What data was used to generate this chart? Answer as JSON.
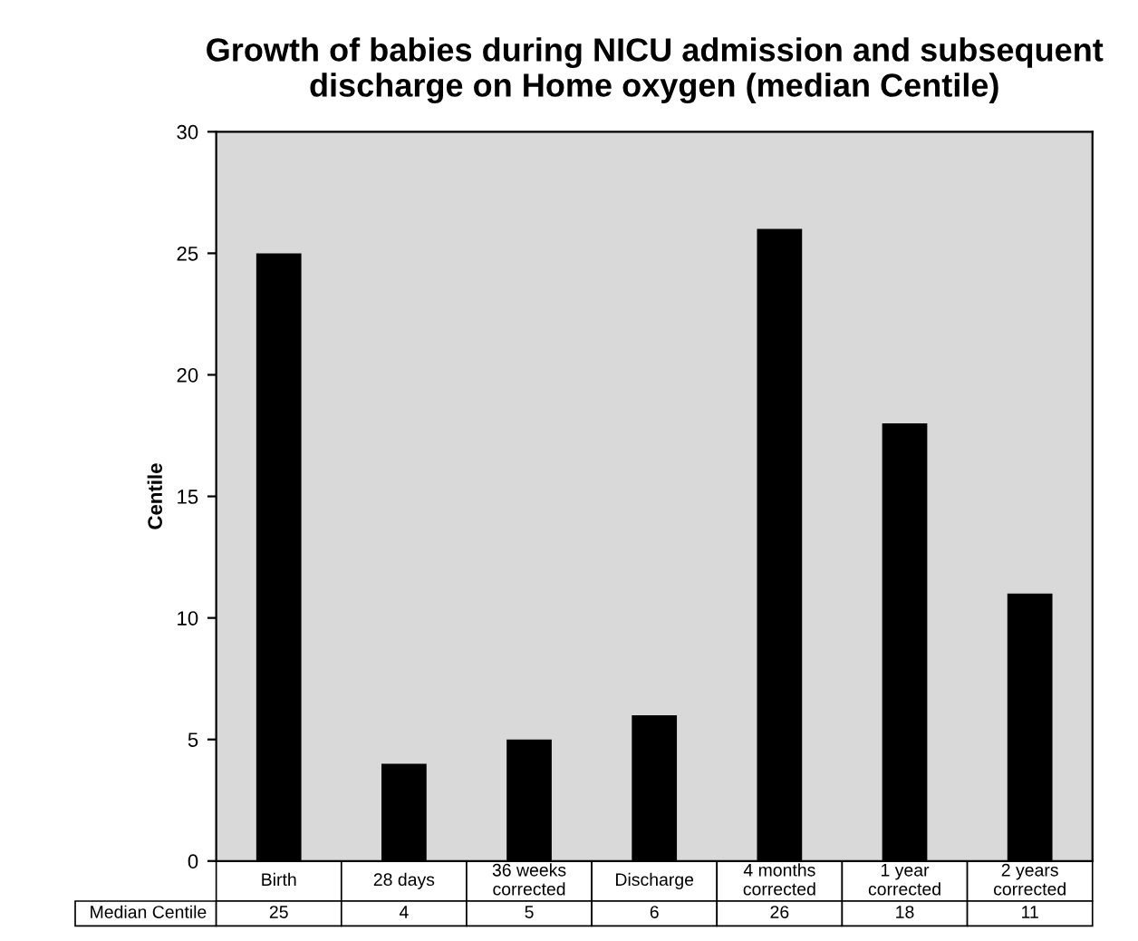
{
  "chart_data": {
    "type": "bar",
    "title": "Growth of babies during NICU admission and subsequent\ndischarge on Home oxygen (median Centile)",
    "ylabel": "Centile",
    "categories": [
      "Birth",
      "28 days",
      "36 weeks\ncorrected",
      "Discharge",
      "4 months\ncorrected",
      "1 year\ncorrected",
      "2 years\ncorrected"
    ],
    "series": [
      {
        "name": "Median Centile",
        "color": "#000000",
        "values": [
          25,
          4,
          5,
          6,
          26,
          18,
          11
        ]
      }
    ],
    "ylim": [
      0,
      30
    ],
    "yticks": [
      0,
      5,
      10,
      15,
      20,
      25,
      30
    ],
    "grid": false,
    "legend": false,
    "data_labels": true
  }
}
